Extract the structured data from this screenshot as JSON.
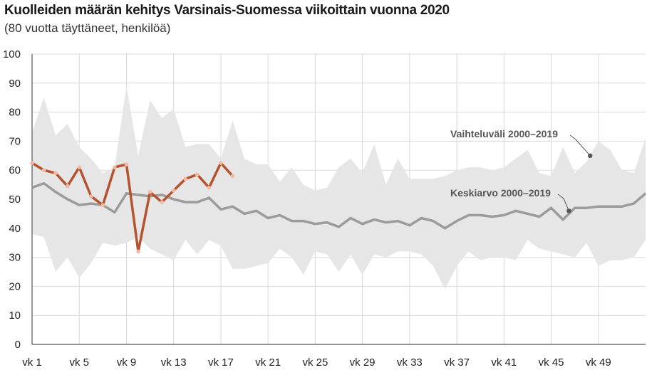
{
  "title": "Kuolleiden määrän kehitys Varsinais-Suomessa viikoittain vuonna 2020",
  "subtitle": "(80 vuotta täyttäneet, henkilöä)",
  "colors": {
    "range": "#e6e6e6",
    "mean": "#9b9b9b",
    "y2020": "#b5532f",
    "y2020_point": "#f2b8a6",
    "grid": "#d9d9d9",
    "annotation_dot": "#555555"
  },
  "chart_data": {
    "type": "line",
    "title": "Kuolleiden määrän kehitys Varsinais-Suomessa viikoittain vuonna 2020",
    "subtitle": "(80 vuotta täyttäneet, henkilöä)",
    "ylim": [
      0,
      100
    ],
    "yticks": [
      0,
      10,
      20,
      30,
      40,
      50,
      60,
      70,
      80,
      90,
      100
    ],
    "weeks": [
      1,
      2,
      3,
      4,
      5,
      6,
      7,
      8,
      9,
      10,
      11,
      12,
      13,
      14,
      15,
      16,
      17,
      18,
      19,
      20,
      21,
      22,
      23,
      24,
      25,
      26,
      27,
      28,
      29,
      30,
      31,
      32,
      33,
      34,
      35,
      36,
      37,
      38,
      39,
      40,
      41,
      42,
      43,
      44,
      45,
      46,
      47,
      48,
      49,
      50,
      51,
      52,
      53
    ],
    "xtick_weeks": [
      1,
      5,
      9,
      13,
      17,
      21,
      25,
      29,
      33,
      37,
      41,
      45,
      49
    ],
    "xtick_labels": [
      "vk 1",
      "vk 5",
      "vk 9",
      "vk 13",
      "vk 17",
      "vk 21",
      "vk 25",
      "vk 29",
      "vk 33",
      "vk 37",
      "vk 41",
      "vk 45",
      "vk 49"
    ],
    "grid": true,
    "series": [
      {
        "name": "Vaihteluväli 2000–2019",
        "kind": "range",
        "max": [
          73,
          85,
          72,
          76,
          68,
          64,
          59,
          61,
          89,
          65,
          84,
          78,
          81,
          68,
          69,
          69,
          64,
          77,
          64,
          62,
          62,
          56,
          61,
          55,
          53,
          54,
          61,
          64,
          59,
          69,
          55,
          64,
          57,
          57,
          57,
          58,
          60,
          61,
          61,
          60,
          61,
          64,
          67,
          59,
          58,
          68,
          59,
          63,
          70,
          67,
          60,
          59,
          71
        ],
        "min": [
          38,
          37,
          25,
          30,
          23,
          28,
          35,
          34,
          35,
          37,
          33,
          31,
          29,
          36,
          31,
          36,
          34,
          26,
          26,
          27,
          28,
          33,
          30,
          24,
          32,
          31,
          25,
          31,
          24,
          31,
          30,
          32,
          32,
          31,
          27,
          19,
          27,
          32,
          29,
          30,
          30,
          29,
          36,
          33,
          32,
          31,
          30,
          35,
          27,
          29,
          29,
          30,
          36
        ]
      },
      {
        "name": "Keskiarvo 2000–2019",
        "kind": "mean",
        "values": [
          54,
          55.5,
          52.5,
          50,
          48,
          48.5,
          48,
          45.5,
          52,
          51.5,
          51,
          51.5,
          50,
          49,
          49,
          50.5,
          46.5,
          47.5,
          45,
          46,
          43.5,
          44.5,
          42.5,
          42.5,
          41.5,
          42,
          40.5,
          43.5,
          41.5,
          43,
          42,
          42.5,
          41,
          43.5,
          42.5,
          40,
          42.5,
          44.5,
          44.5,
          44,
          44.5,
          46,
          45,
          44,
          47,
          43,
          47,
          47,
          47.5,
          47.5,
          47.5,
          48.5,
          52
        ]
      },
      {
        "name": "2020",
        "kind": "2020",
        "values": [
          62.5,
          60,
          59,
          54.5,
          61,
          51,
          48,
          61,
          62,
          32,
          52.5,
          49,
          53,
          57,
          58.5,
          54,
          62.5,
          58
        ]
      }
    ],
    "annotations": [
      {
        "text": "Vaihteluväli 2000–2019",
        "series": "Vaihteluväli 2000–2019",
        "week": 48.3,
        "value": 65
      },
      {
        "text": "Keskiarvo 2000–2019",
        "series": "Keskiarvo 2000–2019",
        "week": 46.5,
        "value": 46
      }
    ]
  }
}
